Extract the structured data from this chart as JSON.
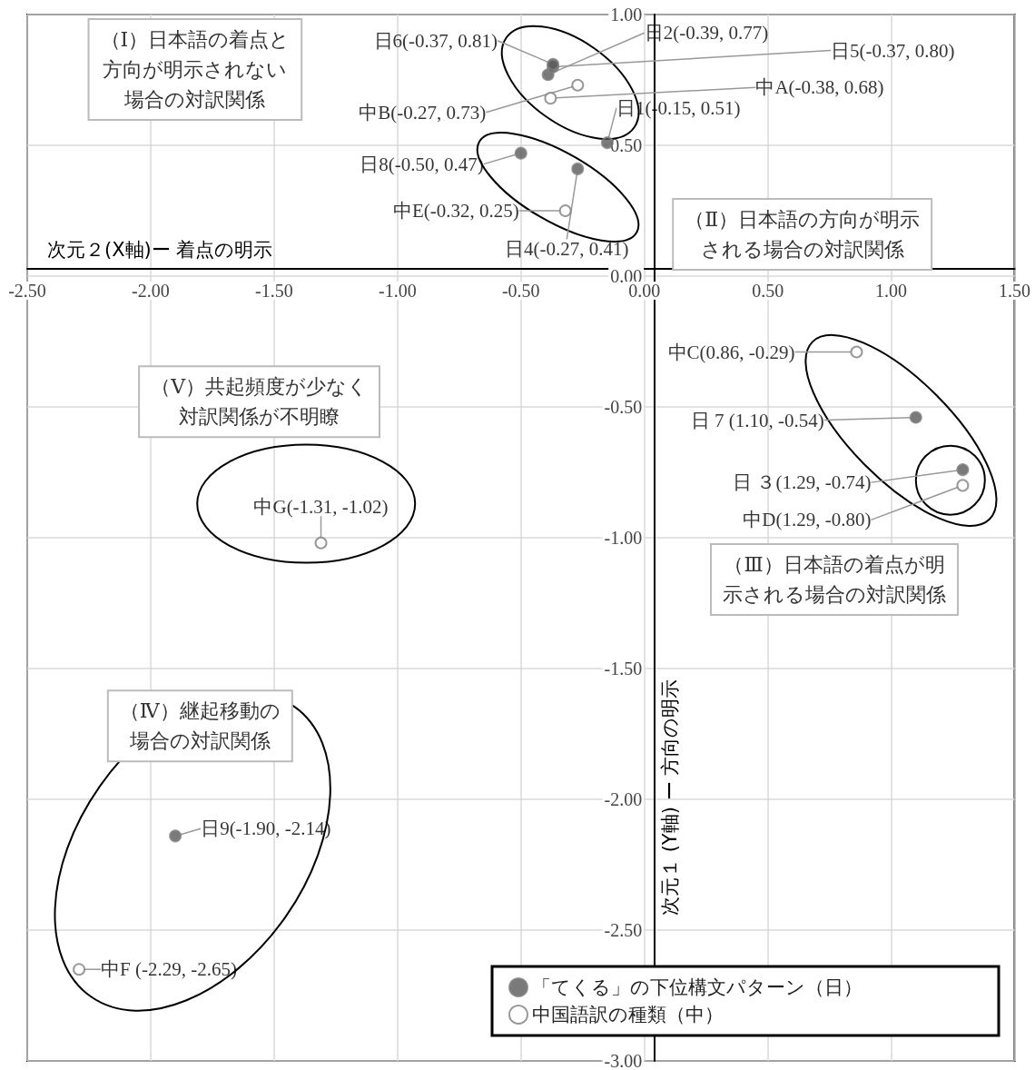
{
  "chart_data": {
    "type": "scatter",
    "xlabel": "次元２(X軸)ー 着点の明示",
    "ylabel": "次元１ (Y軸) ー 方向の明示",
    "xlim": [
      -2.5,
      1.5
    ],
    "ylim": [
      -3,
      1
    ],
    "xticks": [
      {
        "value": -2.5,
        "label": "-2.50"
      },
      {
        "value": -2,
        "label": "-2.00"
      },
      {
        "value": -1.5,
        "label": "-1.50"
      },
      {
        "value": -1,
        "label": "-1.00"
      },
      {
        "value": -0.5,
        "label": "-0.50"
      },
      {
        "value": 0,
        "label": "0.00"
      },
      {
        "value": 0.5,
        "label": "0.50"
      },
      {
        "value": 1,
        "label": "1.00"
      },
      {
        "value": 1.5,
        "label": "1.50"
      }
    ],
    "yticks": [
      {
        "value": -3,
        "label": "-3.00"
      },
      {
        "value": -2.5,
        "label": "-2.50"
      },
      {
        "value": -2,
        "label": "-2.00"
      },
      {
        "value": -1.5,
        "label": "-1.50"
      },
      {
        "value": -1,
        "label": "-1.00"
      },
      {
        "value": -0.5,
        "label": "-0.50"
      },
      {
        "value": 0,
        "label": "0.00"
      },
      {
        "value": 0.5,
        "label": "0.50"
      },
      {
        "value": 1,
        "label": "1.00"
      }
    ],
    "grid": true,
    "legend": "bottom right",
    "series": [
      {
        "name": "「てくる」の下位構文パターン（日）",
        "color": "#595959",
        "marker": "circle",
        "x": [
          -0.15,
          -0.39,
          1.29,
          -0.27,
          -0.37,
          -0.37,
          1.1,
          -0.5,
          -1.9
        ],
        "values": [
          0.51,
          0.77,
          -0.74,
          0.41,
          0.8,
          0.81,
          -0.54,
          0.47,
          -2.14
        ],
        "value_labels": [
          "日1(-0.15, 0.51)",
          "日2(-0.39, 0.77)",
          "日 ３(1.29, -0.74)",
          "日4(-0.27, 0.41)",
          "日5(-0.37, 0.80)",
          "日6(-0.37, 0.81)",
          "日 7 (1.10, -0.54)",
          "日8(-0.50, 0.47)",
          "日9(-1.90, -2.14)"
        ]
      },
      {
        "name": "中国語訳の種類（中）",
        "color": "#ffffff",
        "marker": "circle",
        "x": [
          -0.38,
          -0.27,
          0.86,
          1.29,
          -0.32,
          -2.29,
          -1.31
        ],
        "values": [
          0.68,
          0.73,
          -0.29,
          -0.8,
          0.25,
          -2.65,
          -1.02
        ],
        "value_labels": [
          "中A(-0.38, 0.68)",
          "中B(-0.27, 0.73)",
          "中C(0.86, -0.29)",
          "中D(1.29, -0.80)",
          "中E(-0.32, 0.25)",
          "中F (-2.29, -2.65)",
          "中G(-1.31, -1.02)"
        ]
      }
    ],
    "annotations": [
      "（Ⅰ）日本語の着点と方向が明示されない場合の対訳関係",
      "（Ⅱ）日本語の方向が明示される場合の対訳関係",
      "（Ⅲ）日本語の着点が明示される場合の対訳関係",
      "（Ⅳ）継起移動の場合の対訳関係",
      "（Ⅴ）共起頻度が少なく対訳関係が不明瞭"
    ]
  }
}
